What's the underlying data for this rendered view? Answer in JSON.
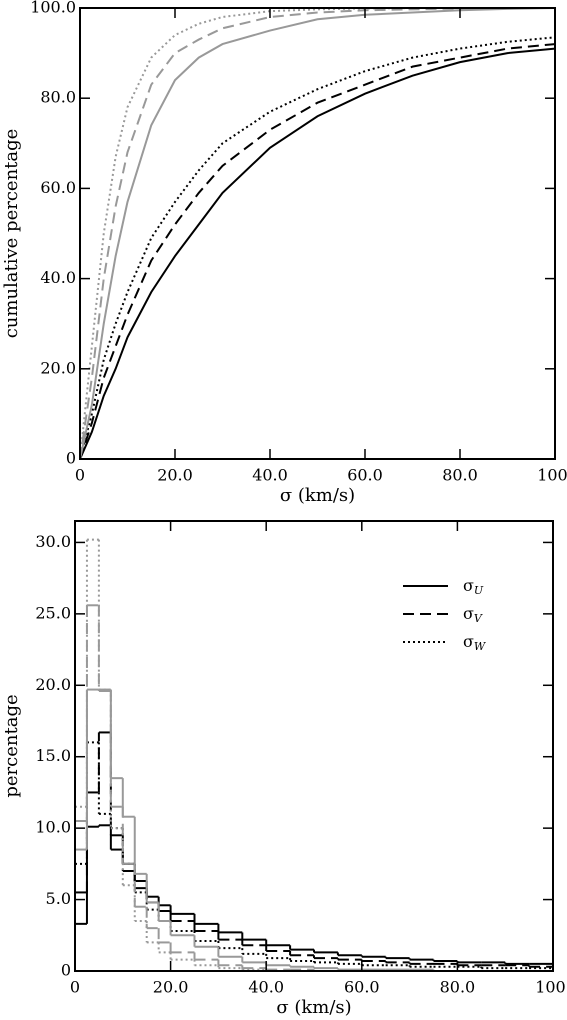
{
  "chart_data": [
    {
      "type": "line",
      "xlabel": "σ (km/s)",
      "ylabel": "cumulative percentage",
      "x": [
        0,
        2.5,
        5,
        7.5,
        10,
        15,
        20,
        25,
        30,
        40,
        50,
        60,
        70,
        80,
        90,
        100
      ],
      "series": [
        {
          "color": "#000000",
          "dash": "solid",
          "values": [
            0,
            6,
            14,
            20,
            27,
            37,
            45,
            52,
            59,
            69,
            76,
            81,
            85,
            88,
            90,
            91
          ]
        },
        {
          "color": "#000000",
          "dash": "dashed",
          "values": [
            0,
            8,
            18,
            25,
            32,
            44,
            52,
            59,
            65,
            73,
            79,
            83,
            87,
            89,
            91,
            92
          ]
        },
        {
          "color": "#000000",
          "dash": "dotted",
          "values": [
            0,
            10,
            22,
            30,
            37,
            49,
            57,
            64,
            70,
            77,
            82,
            86,
            89,
            91,
            92.5,
            93.5
          ]
        },
        {
          "color": "#999999",
          "dash": "solid",
          "values": [
            0,
            12,
            30,
            45,
            57,
            74,
            84,
            89,
            92,
            95,
            97.5,
            98.5,
            99,
            99.5,
            99.8,
            100
          ]
        },
        {
          "color": "#999999",
          "dash": "dashed",
          "values": [
            0,
            18,
            40,
            56,
            68,
            83,
            90,
            93,
            95.5,
            98,
            99,
            99.5,
            99.7,
            99.9,
            100,
            100
          ]
        },
        {
          "color": "#999999",
          "dash": "dotted",
          "values": [
            0,
            25,
            50,
            67,
            78,
            89,
            94,
            96.5,
            98,
            99.3,
            99.7,
            99.9,
            100,
            100,
            100,
            100
          ]
        }
      ],
      "xlim": [
        0,
        100
      ],
      "ylim": [
        0,
        100
      ],
      "xticks": [
        0,
        {
          "value": 20,
          "label": "20.0"
        },
        {
          "value": 40,
          "label": "40.0"
        },
        {
          "value": 60,
          "label": "60.0"
        },
        {
          "value": 80,
          "label": "80.0"
        },
        {
          "value": 100,
          "label": "100."
        }
      ],
      "yticks": [
        0,
        {
          "value": 20,
          "label": "20.0"
        },
        {
          "value": 40,
          "label": "40.0"
        },
        {
          "value": 60,
          "label": "60.0"
        },
        {
          "value": 80,
          "label": "80.0"
        },
        {
          "value": 100,
          "label": "100.0"
        }
      ]
    },
    {
      "type": "histogram",
      "xlabel": "σ (km/s)",
      "ylabel": "percentage",
      "legend": "upper right",
      "bins": [
        0,
        2.5,
        5,
        7.5,
        10,
        12.5,
        15,
        17.5,
        20,
        25,
        30,
        35,
        40,
        45,
        50,
        55,
        60,
        65,
        70,
        75,
        80,
        85,
        90,
        95,
        100
      ],
      "series": [
        {
          "name": "σU",
          "color": "#000000",
          "dash": "solid",
          "values": [
            3.3,
            10.1,
            10.2,
            8.5,
            7.5,
            6.3,
            5.2,
            4.6,
            4.0,
            3.3,
            2.7,
            2.2,
            1.8,
            1.5,
            1.3,
            1.1,
            1.0,
            0.9,
            0.8,
            0.7,
            0.6,
            0.6,
            0.5,
            0.5
          ]
        },
        {
          "name": "σV",
          "color": "#000000",
          "dash": "dashed",
          "values": [
            5.5,
            12.5,
            16.7,
            9.5,
            7.0,
            5.8,
            4.8,
            4.2,
            3.5,
            2.8,
            2.2,
            1.8,
            1.4,
            1.1,
            0.9,
            0.8,
            0.7,
            0.6,
            0.5,
            0.5,
            0.4,
            0.4,
            0.4,
            0.3
          ]
        },
        {
          "name": "σW",
          "color": "#000000",
          "dash": "dotted",
          "values": [
            7.5,
            16.0,
            11.0,
            10.0,
            7.5,
            5.5,
            4.3,
            3.5,
            2.8,
            2.1,
            1.6,
            1.2,
            0.9,
            0.7,
            0.6,
            0.5,
            0.4,
            0.4,
            0.3,
            0.3,
            0.3,
            0.2,
            0.2,
            0.2
          ]
        },
        {
          "color": "#999999",
          "dash": "solid",
          "values": [
            8.5,
            19.7,
            19.6,
            13.5,
            10.8,
            6.8,
            4.8,
            3.5,
            2.5,
            1.7,
            1.0,
            0.6,
            0.4,
            0.3,
            0.2,
            0.1,
            0.1,
            0.1,
            0.1,
            0,
            0,
            0,
            0,
            0
          ]
        },
        {
          "color": "#999999",
          "dash": "dashed",
          "values": [
            10.5,
            25.6,
            19.7,
            11.5,
            7.5,
            4.5,
            3.0,
            2.0,
            1.3,
            0.8,
            0.4,
            0.2,
            0.1,
            0.1,
            0,
            0,
            0,
            0,
            0,
            0,
            0,
            0,
            0,
            0
          ]
        },
        {
          "color": "#999999",
          "dash": "dotted",
          "values": [
            11.5,
            30.2,
            19.7,
            10.0,
            6.0,
            3.5,
            2.0,
            1.3,
            0.8,
            0.4,
            0.2,
            0.1,
            0,
            0,
            0,
            0,
            0,
            0,
            0,
            0,
            0,
            0,
            0,
            0
          ]
        }
      ],
      "xlim": [
        0,
        100
      ],
      "ylim": [
        0,
        31.5
      ],
      "xticks": [
        0,
        {
          "value": 20,
          "label": "20.0"
        },
        {
          "value": 40,
          "label": "40.0"
        },
        {
          "value": 60,
          "label": "60.0"
        },
        {
          "value": 80,
          "label": "80.0"
        },
        {
          "value": 100,
          "label": "100."
        }
      ],
      "yticks": [
        0,
        {
          "value": 5,
          "label": "5.0"
        },
        {
          "value": 10,
          "label": "10.0"
        },
        {
          "value": 15,
          "label": "15.0"
        },
        {
          "value": 20,
          "label": "20.0"
        },
        {
          "value": 25,
          "label": "25.0"
        },
        {
          "value": 30,
          "label": "30.0"
        }
      ]
    }
  ]
}
